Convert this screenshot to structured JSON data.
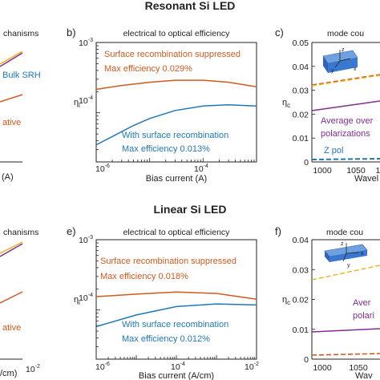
{
  "titles": {
    "top": "Resonant Si LED",
    "bottom": "Linear Si LED"
  },
  "colors": {
    "orange": "#d05a1e",
    "blue": "#1f78b4",
    "purple": "#7e2f8e",
    "yellow": "#edb120",
    "box": "#3a78d0"
  },
  "panels": {
    "a": {
      "subtitle": "chanisms",
      "xlabel": "(A)",
      "labels": [
        "Bulk SRH",
        "ative"
      ]
    },
    "b": {
      "tag": "b)",
      "subtitle": "electrical to optical efficiency",
      "ylabel": "η",
      "ylabel_sub": "i",
      "xlabel": "Bias current (A)",
      "yticks": [
        "10",
        "10"
      ],
      "yticks_exp": [
        "-3",
        "-4"
      ],
      "xticks": [
        "10",
        "10"
      ],
      "xticks_exp": [
        "-6",
        "-4"
      ],
      "labels": [
        "Surface recombination suppressed",
        "Max efficiency 0.029%",
        "With surface recombination",
        "Max efficiency 0.013%"
      ]
    },
    "c": {
      "tag": "c)",
      "subtitle": "mode cou",
      "ylabel": "η",
      "ylabel_sub": "c",
      "xlabel": "Wavel",
      "yticks": [
        "0.05",
        "0.04",
        "0.03",
        "0.02",
        "0.01",
        "0"
      ],
      "xticks": [
        "1000",
        "1050",
        "11"
      ],
      "labels": [
        "Average over",
        "polarizations",
        "Z pol"
      ],
      "inset_axes": [
        "z",
        "x",
        "y"
      ]
    },
    "d": {
      "subtitle": "chanisms",
      "xlabel": "/cm)",
      "xtick_exp": "-2",
      "labels": [
        "ative"
      ]
    },
    "e": {
      "tag": "e)",
      "subtitle": "electrical to optical efficiency",
      "ylabel": "η",
      "ylabel_sub": "i",
      "xlabel": "Bias current (A/cm)",
      "yticks": [
        "10",
        "10"
      ],
      "yticks_exp": [
        "-3",
        "-4"
      ],
      "xticks": [
        "10",
        "10",
        "10"
      ],
      "xticks_exp": [
        "-6",
        "-4",
        "-2"
      ],
      "labels": [
        "Surface recombination suppressed",
        "Max efficiency 0.018%",
        "With surface recombination",
        "Max efficiency 0.012%"
      ]
    },
    "f": {
      "tag": "f)",
      "subtitle": "mode cou",
      "ylabel": "η",
      "ylabel_sub": "c",
      "xlabel": "Wav",
      "yticks": [
        "0.04",
        "0.03",
        "0.02",
        "0.01",
        "0"
      ],
      "xticks": [
        "1000",
        "1050"
      ],
      "labels": [
        "Aver",
        "polari"
      ],
      "inset_axes": [
        "z",
        "x",
        "y"
      ]
    }
  },
  "chart_data": [
    {
      "type": "line",
      "title": "electrical to optical efficiency",
      "xlabel": "Bias current (A)",
      "ylabel": "η_i",
      "xscale": "log",
      "yscale": "log",
      "xlim": [
        1e-06,
        0.001
      ],
      "ylim": [
        2e-05,
        0.001
      ],
      "series": [
        {
          "name": "Surface recombination suppressed",
          "color": "#d05a1e",
          "x": [
            1e-06,
            3e-06,
            1e-05,
            3e-05,
            0.0001,
            0.0003,
            0.001
          ],
          "y": [
            0.000215,
            0.000245,
            0.000272,
            0.00029,
            0.00029,
            0.000272,
            0.000235
          ]
        },
        {
          "name": "With surface recombination",
          "color": "#1f78b4",
          "x": [
            1e-06,
            2e-06,
            5e-06,
            1e-05,
            3e-05,
            0.0001,
            0.0003,
            0.001
          ],
          "y": [
            3.5e-05,
            4.6e-05,
            6.6e-05,
            8.3e-05,
            0.000108,
            0.000125,
            0.00013,
            0.000125
          ]
        }
      ]
    },
    {
      "type": "line",
      "title": "mode cou",
      "ylabel": "η_c",
      "ylim": [
        0,
        0.05
      ],
      "xlim": [
        990,
        1120
      ],
      "series": [
        {
          "name": "",
          "color": "#d05a1e",
          "x": [
            990,
            1120
          ],
          "y": [
            0.032,
            0.041
          ]
        },
        {
          "name": "",
          "color": "#edb120",
          "x": [
            990,
            1120
          ],
          "y": [
            0.032,
            0.0405
          ]
        },
        {
          "name": "Average over polarizations",
          "color": "#7e2f8e",
          "x": [
            990,
            1120
          ],
          "y": [
            0.0215,
            0.0255
          ]
        },
        {
          "name": "Z pol",
          "color": "#1f78b4",
          "x": [
            990,
            1120
          ],
          "y": [
            0.0005,
            0.0012
          ]
        }
      ]
    },
    {
      "type": "line",
      "title": "electrical to optical efficiency",
      "xlabel": "Bias current (A/cm)",
      "ylabel": "η_i",
      "xscale": "log",
      "yscale": "log",
      "xlim": [
        1e-06,
        0.01
      ],
      "ylim": [
        2e-05,
        0.001
      ],
      "series": [
        {
          "name": "Surface recombination suppressed",
          "color": "#d05a1e",
          "x": [
            1e-06,
            1e-05,
            0.0001,
            0.001,
            0.01
          ],
          "y": [
            0.000155,
            0.000168,
            0.00018,
            0.000172,
            0.000142
          ]
        },
        {
          "name": "With surface recombination",
          "color": "#1f78b4",
          "x": [
            1e-06,
            1e-05,
            0.0001,
            0.001,
            0.01
          ],
          "y": [
            5.8e-05,
            8.5e-05,
            0.000112,
            0.000122,
            0.000118
          ]
        }
      ]
    },
    {
      "type": "line",
      "title": "mode cou",
      "ylabel": "η_c",
      "ylim": [
        0,
        0.04
      ],
      "xlim": [
        990,
        1080
      ],
      "series": [
        {
          "name": "",
          "color": "#edb120",
          "x": [
            990,
            1080
          ],
          "y": [
            0.0265,
            0.0315
          ]
        },
        {
          "name": "Average over polarizations",
          "color": "#7e2f8e",
          "x": [
            990,
            1080
          ],
          "y": [
            0.009,
            0.0102
          ]
        },
        {
          "name": "",
          "color": "#d05a1e",
          "x": [
            990,
            1080
          ],
          "y": [
            0.0012,
            0.0018
          ]
        }
      ]
    }
  ]
}
